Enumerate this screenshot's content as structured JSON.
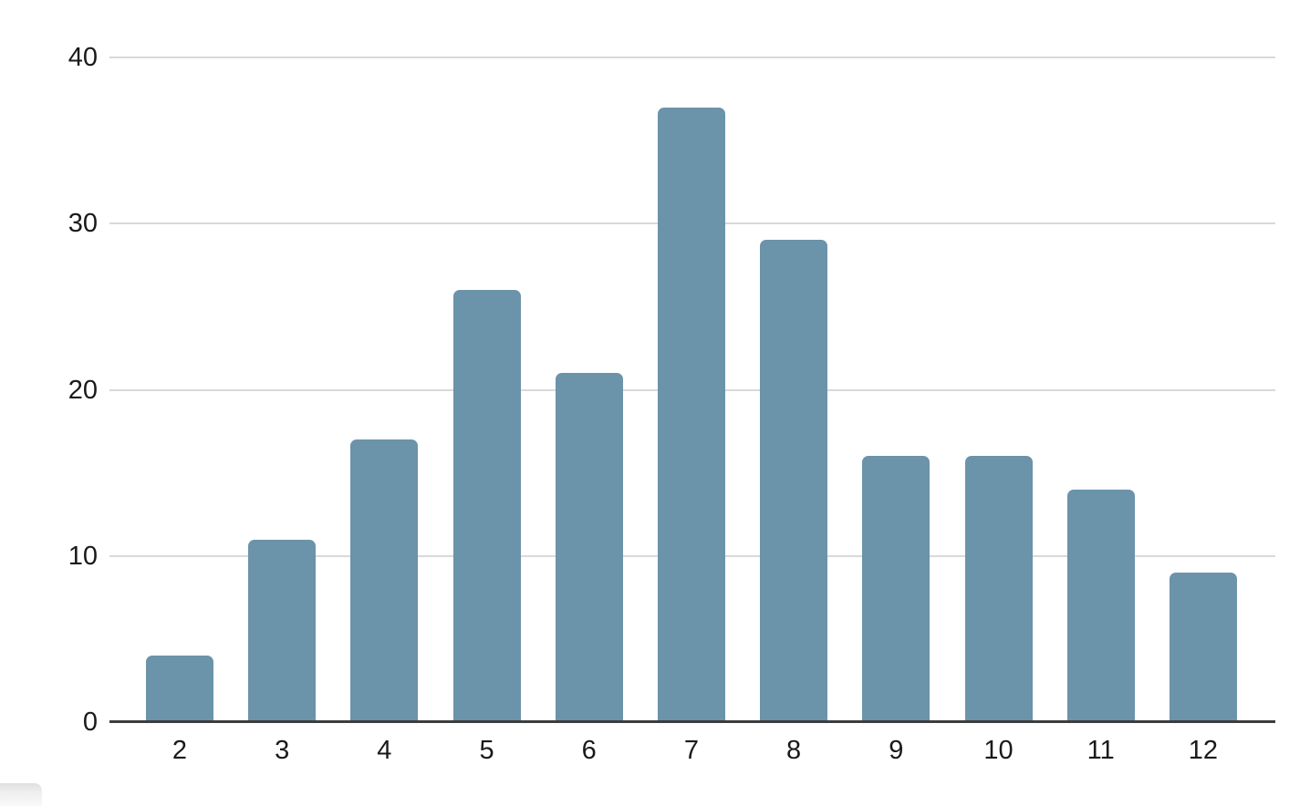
{
  "chart_data": {
    "type": "bar",
    "categories": [
      "2",
      "3",
      "4",
      "5",
      "6",
      "7",
      "8",
      "9",
      "10",
      "11",
      "12"
    ],
    "values": [
      4,
      11,
      17,
      26,
      21,
      37,
      29,
      16,
      16,
      14,
      9
    ],
    "title": "",
    "xlabel": "",
    "ylabel": "",
    "ylim": [
      0,
      40
    ],
    "yticks": [
      0,
      10,
      20,
      30,
      40
    ],
    "grid": true,
    "legend": "none",
    "colors": {
      "bar": "#6b93aa",
      "gridline": "#d9d9d9",
      "axis_baseline": "#3d3d3d",
      "tick_label": "#1a1a1a",
      "background": "#ffffff"
    }
  },
  "decorations": {
    "scrollbar_corner_color": "#dcdcdc"
  }
}
